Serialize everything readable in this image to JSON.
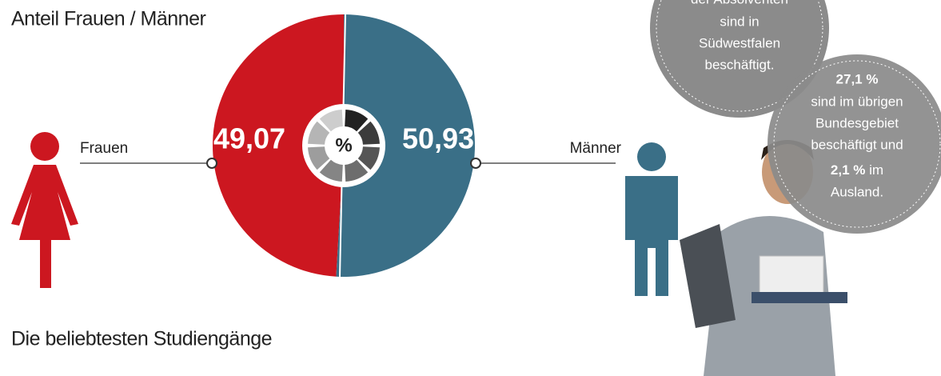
{
  "chart_data": {
    "type": "pie",
    "title": "Anteil Frauen / Männer",
    "categories": [
      "Frauen",
      "Männer"
    ],
    "values": [
      49.07,
      50.93
    ],
    "value_labels": [
      "49,07",
      "50,93"
    ],
    "colors": [
      "#cc1720",
      "#3a6f87"
    ],
    "center_label": "%"
  },
  "bubbles": [
    {
      "lines": [
        "der Absolventen",
        "sind in",
        "Südwestfalen",
        "beschäftigt."
      ]
    },
    {
      "lines": [
        "27,1 %",
        "sind im übrigen",
        "Bundesgebiet",
        "beschäftigt und",
        "2,1 %",
        "im",
        "Ausland."
      ]
    }
  ],
  "section_title": "Die beliebtesten Studiengänge"
}
